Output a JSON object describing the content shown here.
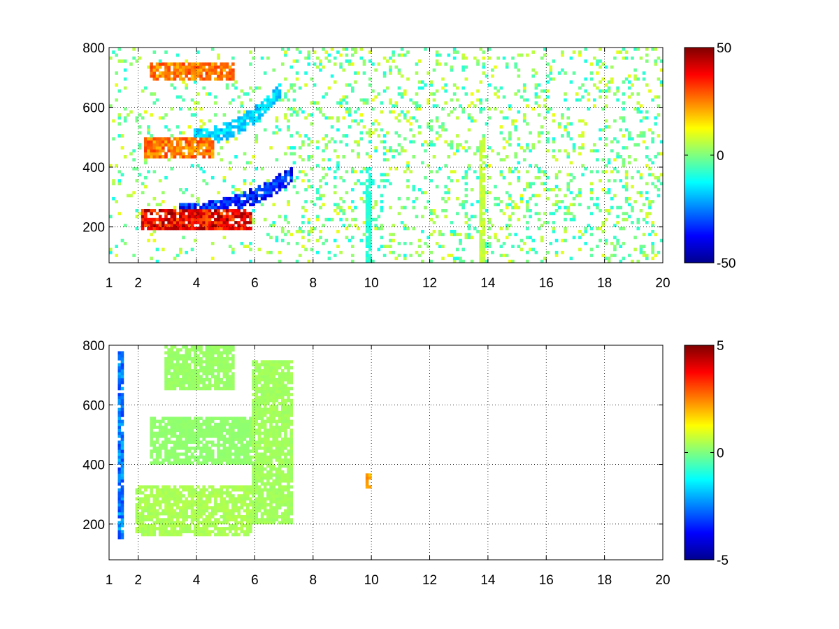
{
  "chart_data": [
    {
      "type": "heatmap",
      "title": "",
      "xlabel": "",
      "ylabel": "",
      "xlim": [
        1,
        20
      ],
      "ylim": [
        80,
        800
      ],
      "x_ticks": [
        1,
        2,
        4,
        6,
        8,
        10,
        12,
        14,
        16,
        18,
        20
      ],
      "x_tick_labels": [
        "1",
        "2",
        "4",
        "6",
        "8",
        "10",
        "12",
        "14",
        "16",
        "18",
        "20"
      ],
      "y_ticks": [
        200,
        400,
        600,
        800
      ],
      "y_tick_labels": [
        "200",
        "400",
        "600",
        "800"
      ],
      "grid": true,
      "colormap": "jet",
      "colorbar": {
        "range": [
          -50,
          50
        ],
        "ticks": [
          50,
          0,
          -50
        ],
        "tick_labels": [
          "50",
          "0",
          "-50"
        ]
      },
      "features": [
        {
          "name": "lower arc positive",
          "x_range": [
            2.2,
            5.8
          ],
          "y": 225,
          "value": 45
        },
        {
          "name": "lower arc negative",
          "x_range": [
            3.5,
            7.2
          ],
          "y_start": 250,
          "y_end": 370,
          "value": -40
        },
        {
          "name": "middle arc positive",
          "x_range": [
            2.3,
            4.5
          ],
          "y": 465,
          "value": 30
        },
        {
          "name": "middle arc negative",
          "x_range": [
            4.0,
            6.8
          ],
          "y_start": 500,
          "y_end": 650,
          "value": -20
        },
        {
          "name": "upper arc positive",
          "x_range": [
            2.5,
            5.2
          ],
          "y": 720,
          "value": 30
        },
        {
          "name": "vertical stripe",
          "x": 13.8,
          "y_range": [
            80,
            500
          ],
          "value": 8
        },
        {
          "name": "vertical stripe",
          "x": 9.9,
          "y_range": [
            80,
            400
          ],
          "value": -10
        }
      ]
    },
    {
      "type": "heatmap",
      "title": "",
      "xlabel": "",
      "ylabel": "",
      "xlim": [
        1,
        20
      ],
      "ylim": [
        80,
        800
      ],
      "x_ticks": [
        1,
        2,
        4,
        6,
        8,
        10,
        12,
        14,
        16,
        18,
        20
      ],
      "x_tick_labels": [
        "1",
        "2",
        "4",
        "6",
        "8",
        "10",
        "12",
        "14",
        "16",
        "18",
        "20"
      ],
      "y_ticks": [
        200,
        400,
        600,
        800
      ],
      "y_tick_labels": [
        "200",
        "400",
        "600",
        "800"
      ],
      "grid": true,
      "colormap": "jet",
      "colorbar": {
        "range": [
          -5,
          5
        ],
        "ticks": [
          5,
          0,
          -5
        ],
        "tick_labels": [
          "5",
          "0",
          "-5"
        ]
      },
      "features": [
        {
          "name": "lower band",
          "x_range": [
            2.0,
            5.8
          ],
          "y_range": [
            160,
            330
          ],
          "value": 0.5
        },
        {
          "name": "middle band",
          "x_range": [
            2.5,
            5.8
          ],
          "y_range": [
            400,
            560
          ],
          "value": 0.2
        },
        {
          "name": "upper band",
          "x_range": [
            3.0,
            5.2
          ],
          "y_range": [
            650,
            800
          ],
          "value": 0.3
        },
        {
          "name": "right lobe",
          "x_range": [
            6.0,
            7.2
          ],
          "y_range": [
            200,
            750
          ],
          "value": 0.4
        },
        {
          "name": "spike line",
          "x": 1.4,
          "y_range": [
            150,
            780
          ],
          "value": -3
        },
        {
          "name": "spot",
          "x": 9.9,
          "y": 345,
          "value": 2.5
        }
      ]
    }
  ]
}
